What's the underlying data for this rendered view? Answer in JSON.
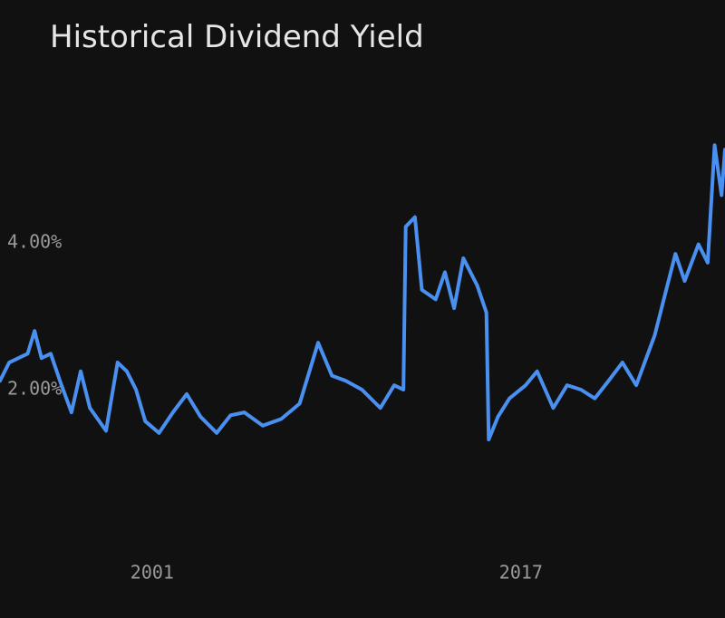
{
  "chart_data": {
    "type": "line",
    "title": "Historical Dividend Yield",
    "color": "#4a90f0",
    "x": [
      1994.4,
      1994.8,
      1995.2,
      1995.6,
      1995.9,
      1996.2,
      1996.6,
      1997.0,
      1997.5,
      1997.9,
      1998.3,
      1999.0,
      1999.5,
      1999.9,
      2000.3,
      2000.7,
      2001.3,
      2001.9,
      2002.5,
      2003.1,
      2003.8,
      2004.4,
      2005.0,
      2005.8,
      2006.6,
      2007.4,
      2008.2,
      2008.8,
      2009.4,
      2010.1,
      2010.9,
      2011.5,
      2011.9,
      2012.0,
      2012.4,
      2012.7,
      2013.3,
      2013.7,
      2014.1,
      2014.5,
      2015.1,
      2015.5,
      2015.6,
      2016.0,
      2016.5,
      2017.2,
      2017.7,
      2018.4,
      2019.0,
      2019.6,
      2020.2,
      2020.8,
      2021.4,
      2022.0,
      2022.8,
      2023.3,
      2023.7,
      2024.1,
      2024.7,
      2025.1,
      2025.4,
      2025.7,
      2025.85
    ],
    "values": [
      2.12,
      2.37,
      2.43,
      2.49,
      2.8,
      2.43,
      2.49,
      2.12,
      1.69,
      2.25,
      1.75,
      1.44,
      2.37,
      2.25,
      2.0,
      1.57,
      1.41,
      1.69,
      1.94,
      1.63,
      1.41,
      1.65,
      1.69,
      1.51,
      1.6,
      1.81,
      2.64,
      2.19,
      2.12,
      2.0,
      1.75,
      2.06,
      2.0,
      4.22,
      4.35,
      3.36,
      3.23,
      3.6,
      3.11,
      3.79,
      3.42,
      3.05,
      1.32,
      1.63,
      1.88,
      2.06,
      2.25,
      1.75,
      2.06,
      2.0,
      1.88,
      2.12,
      2.37,
      2.06,
      2.74,
      3.36,
      3.85,
      3.48,
      3.98,
      3.73,
      5.33,
      4.65,
      5.27
    ],
    "xlim": [
      1994.4,
      2025.85
    ],
    "xticks": [
      2001,
      2017
    ],
    "ylim": [
      0,
      5.8
    ],
    "yticks": [
      {
        "value": 2,
        "label": "2.00%"
      },
      {
        "value": 4,
        "label": "4.00%"
      }
    ]
  }
}
